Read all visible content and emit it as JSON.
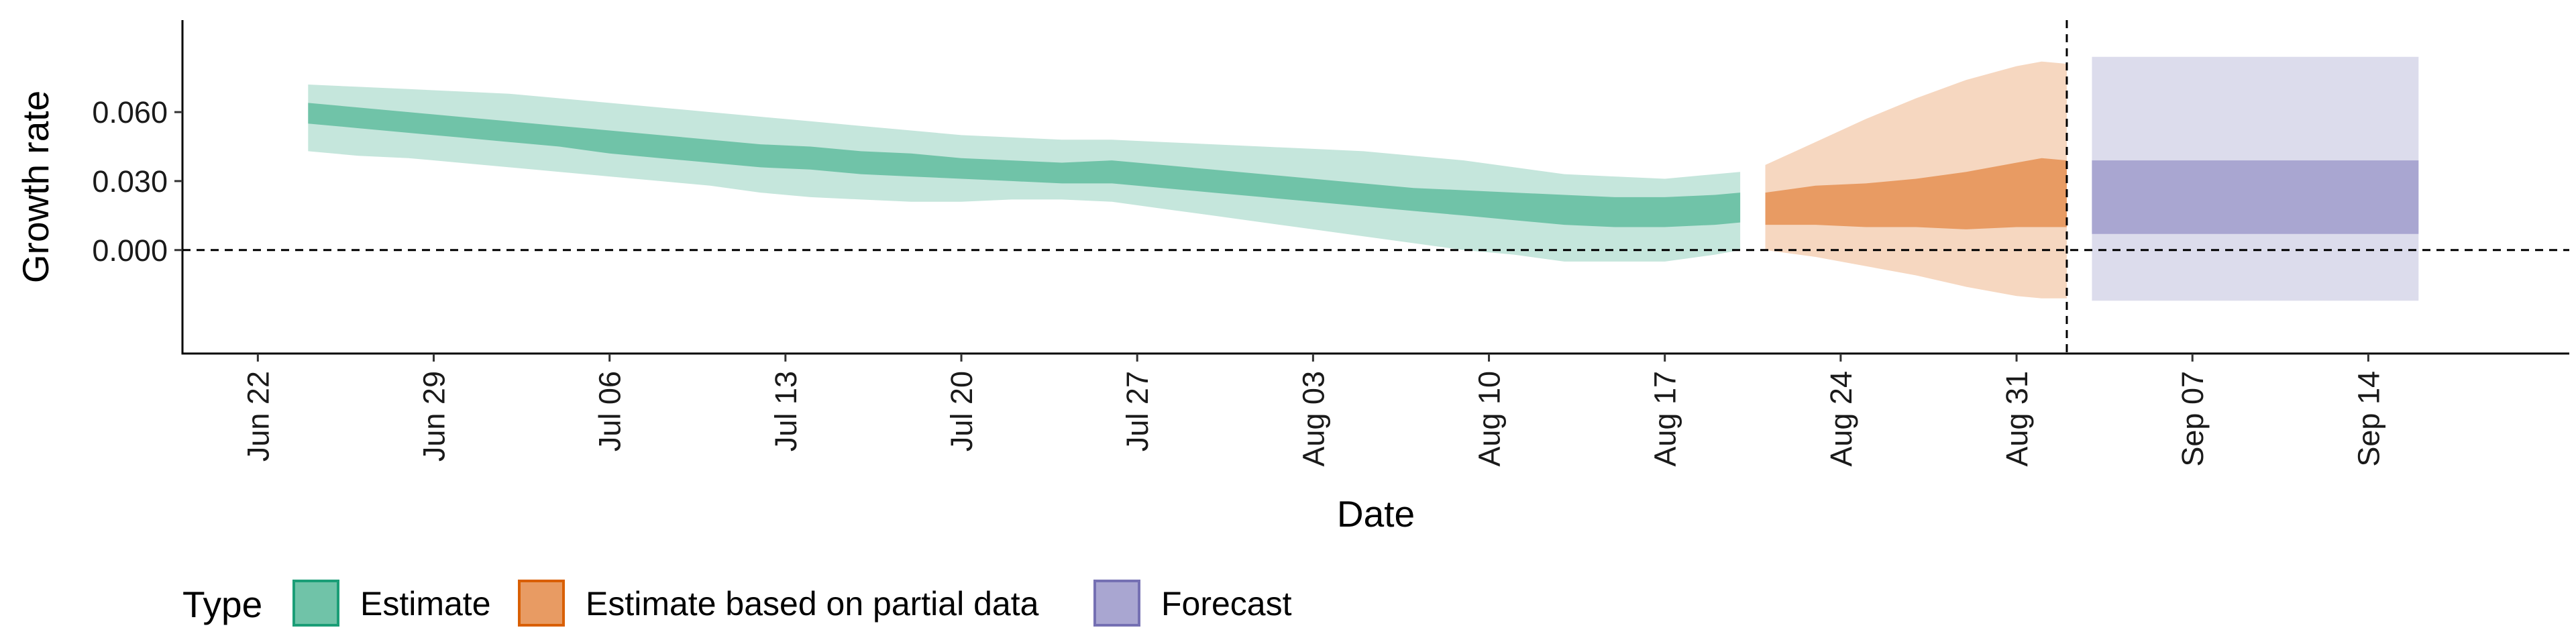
{
  "chart_data": {
    "type": "area",
    "title": "",
    "xlabel": "Date",
    "ylabel": "Growth rate",
    "ylim": [
      -0.045,
      0.1
    ],
    "xlim": [
      "2020-06-19",
      "2020-09-22"
    ],
    "y_ticks": [
      0.0,
      0.03,
      0.06
    ],
    "y_tick_labels": [
      "0.000",
      "0.030",
      "0.060"
    ],
    "x_ticks": [
      "2020-06-22",
      "2020-06-29",
      "2020-07-06",
      "2020-07-13",
      "2020-07-20",
      "2020-07-27",
      "2020-08-03",
      "2020-08-10",
      "2020-08-17",
      "2020-08-24",
      "2020-08-31",
      "2020-09-07",
      "2020-09-14"
    ],
    "x_tick_labels": [
      "Jun 22",
      "Jun 29",
      "Jul 06",
      "Jul 13",
      "Jul 20",
      "Jul 27",
      "Aug 03",
      "Aug 10",
      "Aug 17",
      "Aug 24",
      "Aug 31",
      "Sep 07",
      "Sep 14"
    ],
    "hline_y": 0.0,
    "vline_date": "2020-09-02",
    "legend": {
      "title": "Type",
      "position": "bottom-left",
      "entries": [
        "Estimate",
        "Estimate based on partial data",
        "Forecast"
      ]
    },
    "colors": {
      "Estimate": "#66c2a5",
      "Estimate based on partial data": "#fc8d62",
      "Forecast": "#8da0cb"
    },
    "legend_fill_colors": [
      "#70c3a8",
      "#e89b63",
      "#a9a6d1"
    ],
    "legend_border_colors": [
      "#1b9e77",
      "#d95f02",
      "#7570b3"
    ],
    "series": [
      {
        "name": "Estimate",
        "color_inner": "#70c3a8",
        "color_outer": "#c5e6dc",
        "dates": [
          "2020-06-24",
          "2020-06-26",
          "2020-06-28",
          "2020-06-30",
          "2020-07-02",
          "2020-07-04",
          "2020-07-06",
          "2020-07-08",
          "2020-07-10",
          "2020-07-12",
          "2020-07-14",
          "2020-07-16",
          "2020-07-18",
          "2020-07-20",
          "2020-07-22",
          "2020-07-24",
          "2020-07-26",
          "2020-07-28",
          "2020-07-30",
          "2020-08-01",
          "2020-08-03",
          "2020-08-05",
          "2020-08-07",
          "2020-08-09",
          "2020-08-11",
          "2020-08-13",
          "2020-08-15",
          "2020-08-17",
          "2020-08-19",
          "2020-08-20"
        ],
        "outer_upper": [
          0.072,
          0.071,
          0.07,
          0.069,
          0.068,
          0.066,
          0.064,
          0.062,
          0.06,
          0.058,
          0.056,
          0.054,
          0.052,
          0.05,
          0.049,
          0.048,
          0.048,
          0.047,
          0.046,
          0.045,
          0.044,
          0.043,
          0.041,
          0.039,
          0.036,
          0.033,
          0.032,
          0.031,
          0.033,
          0.034
        ],
        "inner_upper": [
          0.064,
          0.062,
          0.06,
          0.058,
          0.056,
          0.054,
          0.052,
          0.05,
          0.048,
          0.046,
          0.045,
          0.043,
          0.042,
          0.04,
          0.039,
          0.038,
          0.039,
          0.037,
          0.035,
          0.033,
          0.031,
          0.029,
          0.027,
          0.026,
          0.025,
          0.024,
          0.023,
          0.023,
          0.024,
          0.025
        ],
        "inner_lower": [
          0.055,
          0.053,
          0.051,
          0.049,
          0.047,
          0.045,
          0.042,
          0.04,
          0.038,
          0.036,
          0.035,
          0.033,
          0.032,
          0.031,
          0.03,
          0.029,
          0.029,
          0.027,
          0.025,
          0.023,
          0.021,
          0.019,
          0.017,
          0.015,
          0.013,
          0.011,
          0.01,
          0.01,
          0.011,
          0.012
        ],
        "outer_lower": [
          0.043,
          0.041,
          0.04,
          0.038,
          0.036,
          0.034,
          0.032,
          0.03,
          0.028,
          0.025,
          0.023,
          0.022,
          0.021,
          0.021,
          0.022,
          0.022,
          0.021,
          0.018,
          0.015,
          0.012,
          0.009,
          0.006,
          0.003,
          0.0,
          -0.002,
          -0.005,
          -0.005,
          -0.005,
          -0.002,
          0.0
        ]
      },
      {
        "name": "Estimate based on partial data",
        "color_inner": "#e89b63",
        "color_outer": "#f6d7c0",
        "dates": [
          "2020-08-21",
          "2020-08-23",
          "2020-08-25",
          "2020-08-27",
          "2020-08-29",
          "2020-08-31",
          "2020-09-01",
          "2020-09-02"
        ],
        "outer_upper": [
          0.037,
          0.047,
          0.057,
          0.066,
          0.074,
          0.08,
          0.082,
          0.081
        ],
        "inner_upper": [
          0.025,
          0.028,
          0.029,
          0.031,
          0.034,
          0.038,
          0.04,
          0.039
        ],
        "inner_lower": [
          0.011,
          0.011,
          0.01,
          0.01,
          0.009,
          0.01,
          0.01,
          0.01
        ],
        "outer_lower": [
          0.0,
          -0.003,
          -0.007,
          -0.011,
          -0.016,
          -0.02,
          -0.021,
          -0.021
        ]
      },
      {
        "name": "Forecast",
        "color_inner": "#a9a6d1",
        "color_outer": "#dcdcec",
        "dates": [
          "2020-09-03",
          "2020-09-16"
        ],
        "outer_upper": [
          0.084,
          0.084
        ],
        "inner_upper": [
          0.039,
          0.039
        ],
        "inner_lower": [
          0.007,
          0.007
        ],
        "outer_lower": [
          -0.022,
          -0.022
        ]
      }
    ]
  }
}
